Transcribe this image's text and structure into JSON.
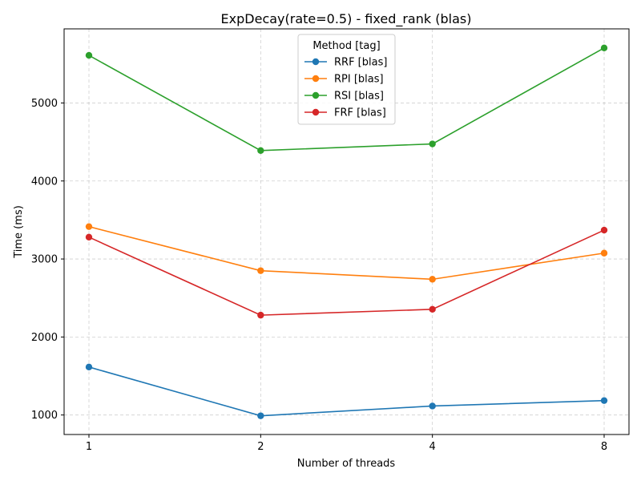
{
  "chart_data": {
    "type": "line",
    "title": "ExpDecay(rate=0.5) - fixed_rank (blas)",
    "xlabel": "Number of threads",
    "ylabel": "Time (ms)",
    "x": [
      1,
      2,
      4,
      8
    ],
    "x_tick_labels": [
      "1",
      "2",
      "4",
      "8"
    ],
    "x_scale": "log2",
    "ylim": [
      750,
      5950
    ],
    "y_ticks": [
      1000,
      2000,
      3000,
      4000,
      5000
    ],
    "y_tick_labels": [
      "1000",
      "2000",
      "3000",
      "4000",
      "5000"
    ],
    "grid": true,
    "legend": {
      "title": "Method [tag]",
      "placement": "upper-center"
    },
    "series": [
      {
        "name": "RRF [blas]",
        "color": "#1f77b4",
        "values": [
          1615,
          990,
          1115,
          1185
        ]
      },
      {
        "name": "RPI [blas]",
        "color": "#ff7f0e",
        "values": [
          3415,
          2850,
          2740,
          3075
        ]
      },
      {
        "name": "RSI [blas]",
        "color": "#2ca02c",
        "values": [
          5610,
          4390,
          4475,
          5705
        ]
      },
      {
        "name": "FRF [blas]",
        "color": "#d62728",
        "values": [
          3280,
          2280,
          2355,
          3370
        ]
      }
    ]
  }
}
